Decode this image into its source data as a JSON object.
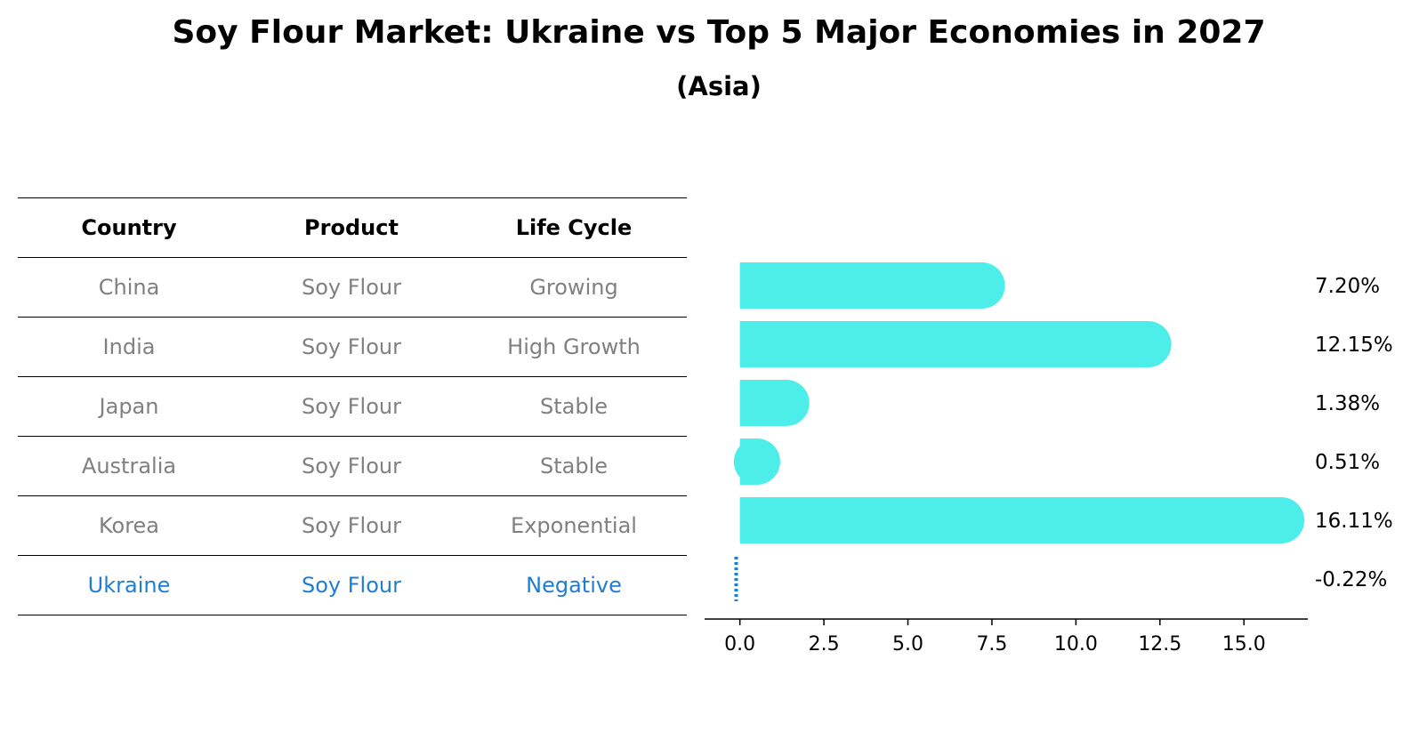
{
  "title": "Soy Flour Market: Ukraine vs Top 5 Major Economies in 2027",
  "subtitle": "(Asia)",
  "table": {
    "headers": [
      "Country",
      "Product",
      "Life Cycle"
    ],
    "rows": [
      {
        "country": "China",
        "product": "Soy Flour",
        "life_cycle": "Growing"
      },
      {
        "country": "India",
        "product": "Soy Flour",
        "life_cycle": "High Growth"
      },
      {
        "country": "Japan",
        "product": "Soy Flour",
        "life_cycle": "Stable"
      },
      {
        "country": "Australia",
        "product": "Soy Flour",
        "life_cycle": "Stable"
      },
      {
        "country": "Korea",
        "product": "Soy Flour",
        "life_cycle": "Exponential"
      },
      {
        "country": "Ukraine",
        "product": "Soy Flour",
        "life_cycle": "Negative"
      }
    ]
  },
  "colors": {
    "bar": "#4deeea",
    "highlight": "#1f7ed3",
    "muted_text": "#808080"
  },
  "chart_data": {
    "type": "bar",
    "orientation": "horizontal",
    "categories": [
      "China",
      "India",
      "Japan",
      "Australia",
      "Korea",
      "Ukraine"
    ],
    "values": [
      7.2,
      12.15,
      1.38,
      0.51,
      16.11,
      -0.22
    ],
    "value_labels": [
      "7.20%",
      "12.15%",
      "1.38%",
      "0.51%",
      "16.11%",
      "-0.22%"
    ],
    "xticks": [
      0.0,
      2.5,
      5.0,
      7.5,
      10.0,
      12.5,
      15.0
    ],
    "xtick_labels": [
      "0.0",
      "2.5",
      "5.0",
      "7.5",
      "10.0",
      "12.5",
      "15.0"
    ],
    "xlim": [
      -1.05,
      16.9
    ],
    "title": "Soy Flour Market: Ukraine vs Top 5 Major Economies in 2027",
    "subtitle": "(Asia)",
    "xlabel": "",
    "ylabel": "",
    "highlight_category": "Ukraine",
    "grid": false
  }
}
